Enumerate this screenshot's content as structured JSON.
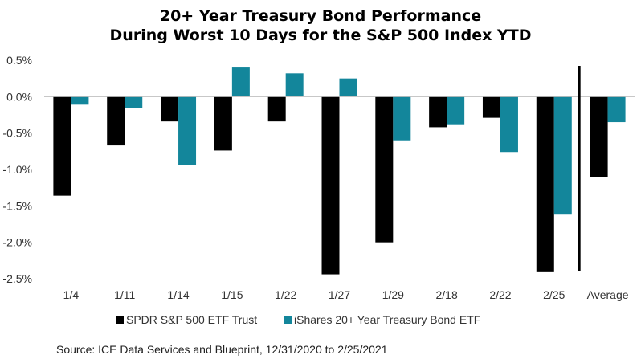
{
  "chart_data": {
    "type": "bar",
    "title": [
      "20+ Year Treasury Bond Performance",
      "During Worst 10 Days for the S&P 500 Index YTD"
    ],
    "categories": [
      "1/4",
      "1/11",
      "1/14",
      "1/15",
      "1/22",
      "1/27",
      "1/29",
      "2/18",
      "2/22",
      "2/25",
      "Average"
    ],
    "series": [
      {
        "name": "SPDR S&P 500 ETF Trust",
        "color": "#000000",
        "values": [
          -1.36,
          -0.67,
          -0.34,
          -0.74,
          -0.34,
          -2.44,
          -2.0,
          -0.42,
          -0.29,
          -2.41,
          -1.1
        ]
      },
      {
        "name": "iShares 20+ Year Treasury Bond ETF",
        "color": "#13869B",
        "values": [
          -0.11,
          -0.16,
          -0.94,
          0.4,
          0.32,
          0.25,
          -0.6,
          -0.39,
          -0.76,
          -1.62,
          -0.35
        ]
      }
    ],
    "yticks": [
      "0.5%",
      "0.0%",
      "-0.5%",
      "-1.0%",
      "-1.5%",
      "-2.0%",
      "-2.5%"
    ],
    "ytick_values": [
      0.5,
      0.0,
      -0.5,
      -1.0,
      -1.5,
      -2.0,
      -2.5
    ],
    "ylim": [
      -2.5,
      0.5
    ],
    "separator_before": "Average",
    "grid": false,
    "legend_position": "bottom"
  },
  "source": "Source: ICE Data Services and Blueprint, 12/31/2020 to 2/25/2021"
}
